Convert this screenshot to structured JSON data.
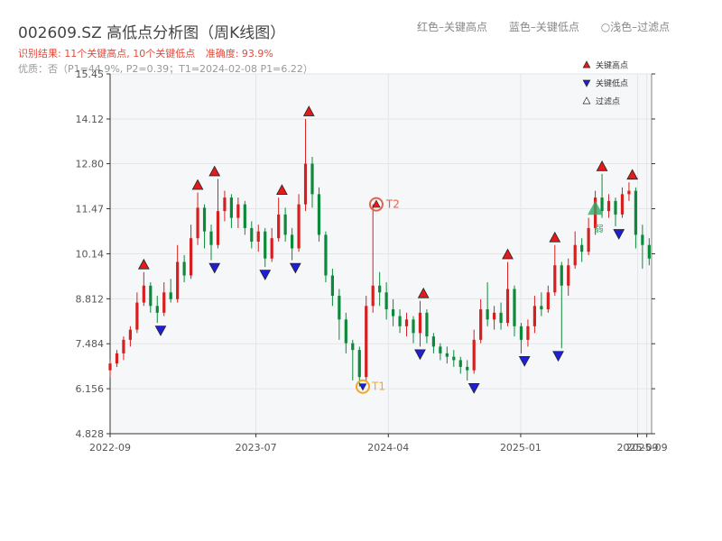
{
  "header": {
    "title": "002609.SZ 高低点分析图（周K线图）",
    "legend_high": "红色–关键高点",
    "legend_low": "蓝色–关键低点",
    "legend_filter": "○浅色–过滤点"
  },
  "summary": {
    "result": "识别结果: 11个关键高点, 10个关键低点",
    "accuracy": "准确度: 93.9%",
    "quality": "优质：否（P1=44.9%, P2=0.39；T1=2024-02-08 P1=6.22）"
  },
  "chart_data": {
    "type": "candlestick",
    "yticks": [
      4.828,
      6.156,
      7.484,
      8.812,
      10.14,
      11.47,
      12.8,
      14.12,
      15.45
    ],
    "ytick_labels": [
      "4.828",
      "6.156",
      "7.484",
      "8.812",
      "10.14",
      "11.47",
      "12.80",
      "14.12",
      "15.45"
    ],
    "ylim": [
      4.828,
      15.45
    ],
    "xlim": [
      "2022-09-01",
      "2025-09-30"
    ],
    "xtick_labels": [
      "2022-09",
      "2023-07",
      "2024-04",
      "2025-01",
      "2025-09",
      "2025-09"
    ],
    "xtick_dates": [
      "2022-09-01",
      "2023-07-01",
      "2024-04-01",
      "2025-01-01",
      "2025-09-01",
      "2025-09-20"
    ],
    "grid": true,
    "colors": {
      "up": "#d61f1f",
      "down": "#0b8a3a",
      "high": "#e41a1c",
      "low": "#1f1fd6",
      "t1": "#f5a623",
      "t2": "#e8604c",
      "filtered": "#2eaa6a"
    },
    "legend": {
      "placement": "top-right",
      "entries": [
        {
          "label": "关键高点",
          "color": "#e41a1c",
          "marker": "triangle-up"
        },
        {
          "label": "关键低点",
          "color": "#1f1fd6",
          "marker": "triangle-down"
        },
        {
          "label": "过滤点",
          "color": "#ffffff",
          "marker": "triangle-up"
        }
      ]
    },
    "key_highs": [
      {
        "date": "2022-11-10",
        "price": 9.6
      },
      {
        "date": "2023-03-02",
        "price": 11.95
      },
      {
        "date": "2023-04-06",
        "price": 12.35
      },
      {
        "date": "2023-08-24",
        "price": 11.8
      },
      {
        "date": "2023-10-19",
        "price": 14.12
      },
      {
        "date": "2024-06-13",
        "price": 8.75
      },
      {
        "date": "2024-12-05",
        "price": 9.9
      },
      {
        "date": "2025-03-13",
        "price": 10.4
      },
      {
        "date": "2025-06-19",
        "price": 12.5
      },
      {
        "date": "2025-08-21",
        "price": 12.25
      }
    ],
    "key_lows": [
      {
        "date": "2022-12-15",
        "price": 8.1
      },
      {
        "date": "2023-04-06",
        "price": 9.95
      },
      {
        "date": "2023-07-20",
        "price": 9.75
      },
      {
        "date": "2023-09-21",
        "price": 9.95
      },
      {
        "date": "2024-06-06",
        "price": 7.4
      },
      {
        "date": "2024-09-26",
        "price": 6.4
      },
      {
        "date": "2025-01-09",
        "price": 7.2
      },
      {
        "date": "2025-03-20",
        "price": 7.35
      },
      {
        "date": "2025-07-24",
        "price": 10.95
      }
    ],
    "t1": {
      "label": "T1",
      "date": "2024-02-08",
      "price": 6.22
    },
    "t2": {
      "label": "T2",
      "date": "2024-03-07",
      "price": 11.6
    },
    "filtered_points": [
      {
        "date": "2025-06-05",
        "price": 11.47,
        "label": "弱"
      }
    ],
    "candles": [
      [
        "2022-09-01",
        6.7,
        6.9,
        7.0,
        6.5
      ],
      [
        "2022-09-15",
        6.9,
        7.2,
        7.3,
        6.8
      ],
      [
        "2022-09-29",
        7.2,
        7.6,
        7.7,
        7.0
      ],
      [
        "2022-10-13",
        7.6,
        7.9,
        8.0,
        7.4
      ],
      [
        "2022-10-27",
        7.9,
        8.7,
        9.0,
        7.8
      ],
      [
        "2022-11-10",
        8.7,
        9.2,
        9.6,
        8.6
      ],
      [
        "2022-11-24",
        9.2,
        8.6,
        9.3,
        8.4
      ],
      [
        "2022-12-08",
        8.6,
        8.4,
        8.9,
        8.1
      ],
      [
        "2022-12-22",
        8.4,
        9.0,
        9.3,
        8.3
      ],
      [
        "2023-01-05",
        9.0,
        8.8,
        9.4,
        8.7
      ],
      [
        "2023-01-19",
        8.8,
        9.9,
        10.4,
        8.7
      ],
      [
        "2023-02-02",
        9.9,
        9.5,
        10.1,
        9.3
      ],
      [
        "2023-02-16",
        9.5,
        10.6,
        11.0,
        9.4
      ],
      [
        "2023-03-02",
        10.6,
        11.5,
        11.95,
        10.4
      ],
      [
        "2023-03-16",
        11.5,
        10.8,
        11.6,
        10.3
      ],
      [
        "2023-03-30",
        10.8,
        10.4,
        11.0,
        9.95
      ],
      [
        "2023-04-13",
        10.4,
        11.4,
        12.35,
        10.3
      ],
      [
        "2023-04-27",
        11.4,
        11.8,
        12.0,
        11.1
      ],
      [
        "2023-05-11",
        11.8,
        11.2,
        11.9,
        10.9
      ],
      [
        "2023-05-25",
        11.2,
        11.6,
        11.8,
        10.9
      ],
      [
        "2023-06-08",
        11.6,
        10.9,
        11.7,
        10.7
      ],
      [
        "2023-06-22",
        10.9,
        10.5,
        11.1,
        10.3
      ],
      [
        "2023-07-06",
        10.5,
        10.8,
        11.0,
        10.2
      ],
      [
        "2023-07-20",
        10.8,
        10.0,
        10.9,
        9.75
      ],
      [
        "2023-08-03",
        10.0,
        10.6,
        10.9,
        9.9
      ],
      [
        "2023-08-17",
        10.6,
        11.3,
        11.8,
        10.5
      ],
      [
        "2023-08-31",
        11.3,
        10.7,
        11.5,
        10.5
      ],
      [
        "2023-09-14",
        10.7,
        10.3,
        10.9,
        9.95
      ],
      [
        "2023-09-28",
        10.3,
        11.6,
        11.9,
        10.2
      ],
      [
        "2023-10-12",
        11.6,
        12.8,
        14.12,
        11.4
      ],
      [
        "2023-10-26",
        12.8,
        11.9,
        13.0,
        11.5
      ],
      [
        "2023-11-09",
        11.9,
        10.7,
        12.1,
        10.5
      ],
      [
        "2023-11-23",
        10.7,
        9.5,
        10.8,
        9.3
      ],
      [
        "2023-12-07",
        9.5,
        8.9,
        9.7,
        8.6
      ],
      [
        "2023-12-21",
        8.9,
        8.2,
        9.1,
        7.6
      ],
      [
        "2024-01-04",
        8.2,
        7.5,
        8.4,
        7.2
      ],
      [
        "2024-01-18",
        7.5,
        7.3,
        7.6,
        6.4
      ],
      [
        "2024-02-01",
        7.3,
        6.5,
        7.4,
        6.22
      ],
      [
        "2024-02-15",
        6.5,
        8.6,
        8.9,
        6.4
      ],
      [
        "2024-02-29",
        8.6,
        9.2,
        11.6,
        8.4
      ],
      [
        "2024-03-14",
        9.2,
        9.0,
        9.6,
        8.6
      ],
      [
        "2024-03-28",
        9.0,
        8.5,
        9.3,
        8.2
      ],
      [
        "2024-04-11",
        8.5,
        8.3,
        8.8,
        8.0
      ],
      [
        "2024-04-25",
        8.3,
        8.0,
        8.5,
        7.8
      ],
      [
        "2024-05-09",
        8.0,
        8.2,
        8.4,
        7.7
      ],
      [
        "2024-05-23",
        8.2,
        7.8,
        8.3,
        7.5
      ],
      [
        "2024-06-06",
        7.8,
        8.4,
        8.75,
        7.4
      ],
      [
        "2024-06-20",
        8.4,
        7.7,
        8.5,
        7.5
      ],
      [
        "2024-07-04",
        7.7,
        7.4,
        7.8,
        7.2
      ],
      [
        "2024-07-18",
        7.4,
        7.2,
        7.5,
        7.0
      ],
      [
        "2024-08-01",
        7.2,
        7.1,
        7.4,
        6.9
      ],
      [
        "2024-08-15",
        7.1,
        7.0,
        7.3,
        6.8
      ],
      [
        "2024-08-29",
        7.0,
        6.8,
        7.1,
        6.6
      ],
      [
        "2024-09-12",
        6.8,
        6.7,
        7.0,
        6.4
      ],
      [
        "2024-09-26",
        6.7,
        7.6,
        7.9,
        6.6
      ],
      [
        "2024-10-10",
        7.6,
        8.5,
        8.8,
        7.5
      ],
      [
        "2024-10-24",
        8.5,
        8.2,
        9.3,
        8.0
      ],
      [
        "2024-11-07",
        8.2,
        8.4,
        8.6,
        7.9
      ],
      [
        "2024-11-21",
        8.4,
        8.1,
        8.7,
        7.9
      ],
      [
        "2024-12-05",
        8.1,
        9.1,
        9.9,
        8.0
      ],
      [
        "2024-12-19",
        9.1,
        8.0,
        9.2,
        7.7
      ],
      [
        "2025-01-02",
        8.0,
        7.6,
        8.1,
        7.2
      ],
      [
        "2025-01-16",
        7.6,
        8.0,
        8.2,
        7.4
      ],
      [
        "2025-01-30",
        8.0,
        8.6,
        8.9,
        7.8
      ],
      [
        "2025-02-13",
        8.6,
        8.5,
        9.0,
        8.3
      ],
      [
        "2025-02-27",
        8.5,
        9.0,
        9.2,
        8.4
      ],
      [
        "2025-03-13",
        9.0,
        9.8,
        10.4,
        8.9
      ],
      [
        "2025-03-27",
        9.8,
        9.2,
        9.9,
        7.35
      ],
      [
        "2025-04-10",
        9.2,
        9.8,
        10.0,
        8.9
      ],
      [
        "2025-04-24",
        9.8,
        10.4,
        10.8,
        9.7
      ],
      [
        "2025-05-08",
        10.4,
        10.2,
        10.6,
        9.9
      ],
      [
        "2025-05-22",
        10.2,
        10.9,
        11.2,
        10.1
      ],
      [
        "2025-06-05",
        10.9,
        11.8,
        12.0,
        10.7
      ],
      [
        "2025-06-19",
        11.8,
        11.4,
        12.5,
        11.2
      ],
      [
        "2025-07-03",
        11.4,
        11.7,
        11.9,
        11.2
      ],
      [
        "2025-07-17",
        11.7,
        11.3,
        11.8,
        10.95
      ],
      [
        "2025-07-31",
        11.3,
        11.9,
        12.1,
        11.2
      ],
      [
        "2025-08-14",
        11.9,
        12.0,
        12.25,
        11.7
      ],
      [
        "2025-08-28",
        12.0,
        10.7,
        12.1,
        10.3
      ],
      [
        "2025-09-11",
        10.7,
        10.4,
        11.0,
        9.7
      ],
      [
        "2025-09-25",
        10.4,
        10.0,
        10.6,
        9.8
      ]
    ]
  }
}
